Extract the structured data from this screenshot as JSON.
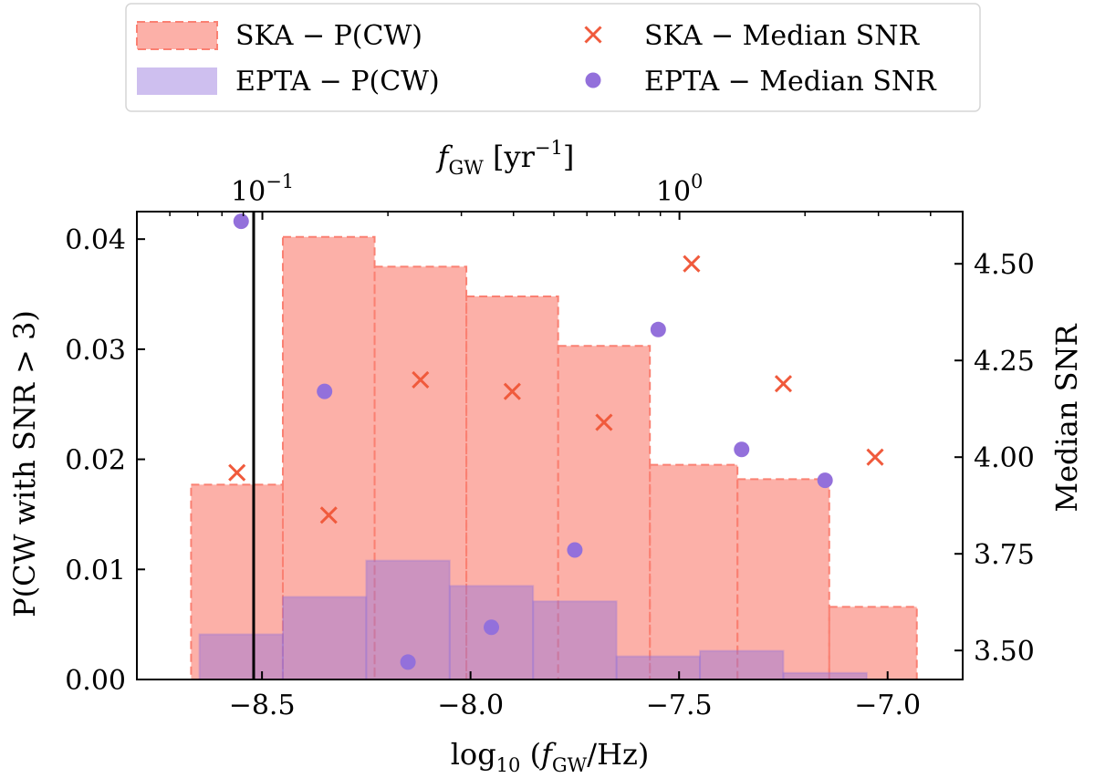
{
  "chart_data": {
    "type": "bar",
    "xlabel": "log10 (fGW/Hz)",
    "ylabel_left": "P(CW with SNR > 3)",
    "ylabel_right": "Median SNR",
    "xlabel_top": "fGW [yr−1]",
    "xlim": [
      -8.8,
      -6.82
    ],
    "ylim_left": [
      0,
      0.0425
    ],
    "ylim_right": [
      3.425,
      4.635
    ],
    "x_ticks": [
      -8.5,
      -8.0,
      -7.5,
      -7.0
    ],
    "x_tick_labels": [
      "−8.5",
      "−8.0",
      "−7.5",
      "−7.0"
    ],
    "y_left_ticks": [
      0.0,
      0.01,
      0.02,
      0.03,
      0.04
    ],
    "y_left_tick_labels": [
      "0.00",
      "0.01",
      "0.02",
      "0.03",
      "0.04"
    ],
    "y_right_ticks": [
      3.5,
      3.75,
      4.0,
      4.25,
      4.5
    ],
    "y_right_tick_labels": [
      "3.50",
      "3.75",
      "4.00",
      "4.25",
      "4.50"
    ],
    "top_ticks_log10_Hz": [
      -8.499,
      -7.499
    ],
    "top_tick_labels": [
      "10−1",
      "100"
    ],
    "vline_x": -8.52,
    "legend": {
      "position": "top-center",
      "entries": [
        {
          "label": "SKA − P(CW)",
          "kind": "bar",
          "series": "ska"
        },
        {
          "label": "EPTA − P(CW)",
          "kind": "bar",
          "series": "epta"
        },
        {
          "label": "SKA − Median SNR",
          "kind": "x-marker",
          "series": "ska"
        },
        {
          "label": "EPTA − Median SNR",
          "kind": "dot-marker",
          "series": "epta"
        }
      ]
    },
    "ska_bars": {
      "name": "SKA − P(CW)",
      "color": "#fa8072",
      "edges": [
        -8.67,
        -8.45,
        -8.23,
        -8.01,
        -7.79,
        -7.57,
        -7.36,
        -7.14,
        -6.93
      ],
      "values": [
        0.0177,
        0.0402,
        0.0375,
        0.0348,
        0.0303,
        0.0195,
        0.0182,
        0.0066
      ]
    },
    "epta_bars": {
      "name": "EPTA − P(CW)",
      "color": "#9370db",
      "edges": [
        -8.65,
        -8.45,
        -8.25,
        -8.05,
        -7.85,
        -7.65,
        -7.45,
        -7.25,
        -7.05
      ],
      "values": [
        0.0041,
        0.0075,
        0.0108,
        0.0085,
        0.0071,
        0.0021,
        0.0026,
        0.0006
      ]
    },
    "ska_snr": {
      "name": "SKA − Median SNR",
      "color": "#f05a3c",
      "x": [
        -8.56,
        -8.34,
        -8.12,
        -7.9,
        -7.68,
        -7.47,
        -7.25,
        -7.03
      ],
      "y": [
        3.96,
        3.85,
        4.2,
        4.17,
        4.09,
        4.5,
        4.19,
        4.0
      ]
    },
    "epta_snr": {
      "name": "EPTA − Median SNR",
      "color": "#9370db",
      "x": [
        -8.55,
        -8.35,
        -8.15,
        -7.95,
        -7.75,
        -7.55,
        -7.35,
        -7.15
      ],
      "y": [
        4.61,
        4.17,
        3.47,
        3.56,
        3.76,
        4.33,
        4.02,
        3.94
      ]
    }
  }
}
